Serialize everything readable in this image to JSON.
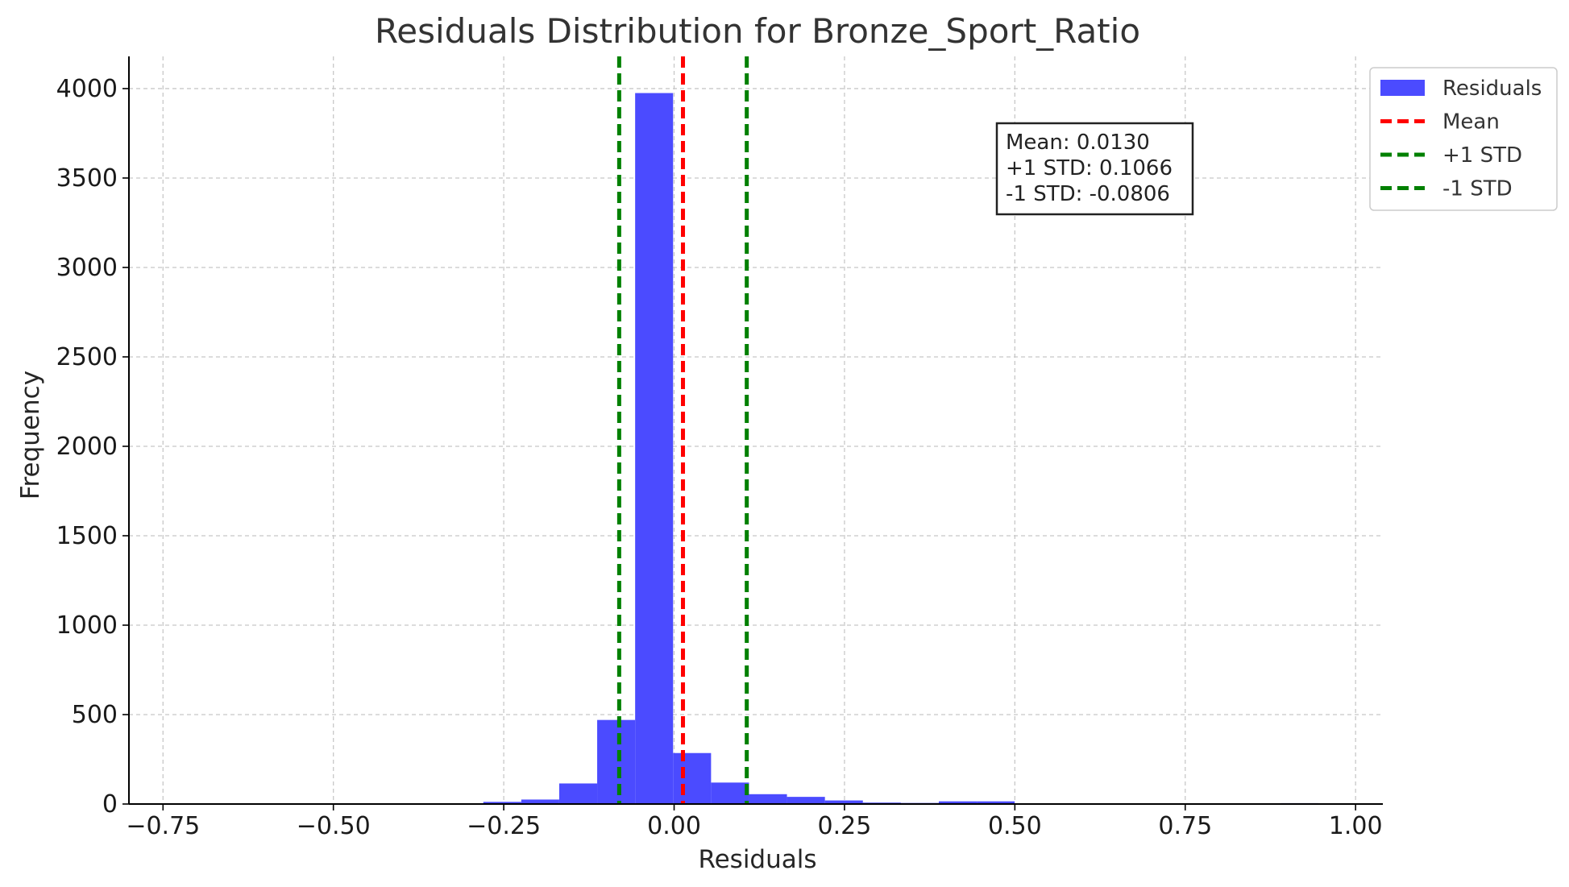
{
  "chart_data": {
    "type": "bar",
    "title": "Residuals Distribution for Bronze_Sport_Ratio",
    "xlabel": "Residuals",
    "ylabel": "Frequency",
    "xlim": [
      -0.8,
      1.04
    ],
    "ylim": [
      0,
      4180
    ],
    "xticks": [
      -0.75,
      -0.5,
      -0.25,
      0.0,
      0.25,
      0.5,
      0.75,
      1.0
    ],
    "xtick_labels": [
      "−0.75",
      "−0.50",
      "−0.25",
      "0.00",
      "0.25",
      "0.50",
      "0.75",
      "1.00"
    ],
    "yticks": [
      0,
      500,
      1000,
      1500,
      2000,
      2500,
      3000,
      3500,
      4000
    ],
    "ytick_labels": [
      "0",
      "500",
      "1000",
      "1500",
      "2000",
      "2500",
      "3000",
      "3500",
      "4000"
    ],
    "grid": true,
    "bar_color": "#4b4bff",
    "bin_width": 0.0557,
    "bins": [
      {
        "x0": -0.28,
        "value": 12
      },
      {
        "x0": -0.2243,
        "value": 25
      },
      {
        "x0": -0.1686,
        "value": 115
      },
      {
        "x0": -0.1129,
        "value": 470
      },
      {
        "x0": -0.0572,
        "value": 3975
      },
      {
        "x0": -0.0015,
        "value": 285
      },
      {
        "x0": 0.0542,
        "value": 120
      },
      {
        "x0": 0.1099,
        "value": 55
      },
      {
        "x0": 0.1656,
        "value": 40
      },
      {
        "x0": 0.2213,
        "value": 20
      },
      {
        "x0": 0.277,
        "value": 8
      },
      {
        "x0": 0.3327,
        "value": 6
      },
      {
        "x0": 0.3884,
        "value": 15
      },
      {
        "x0": 0.4441,
        "value": 15
      },
      {
        "x0": 0.89,
        "value": 5
      }
    ],
    "lines": [
      {
        "name": "Mean",
        "x": 0.013,
        "color": "#ff0000"
      },
      {
        "name": "+1 STD",
        "x": 0.1066,
        "color": "#008000"
      },
      {
        "name": "-1 STD",
        "x": -0.0806,
        "color": "#008000"
      }
    ],
    "legend": {
      "placement": "top-right",
      "entries": [
        {
          "label": "Residuals",
          "kind": "patch",
          "color": "#4b4bff"
        },
        {
          "label": "Mean",
          "kind": "dash",
          "color": "#ff0000"
        },
        {
          "label": "+1 STD",
          "kind": "dash",
          "color": "#008000"
        },
        {
          "label": "-1 STD",
          "kind": "dash",
          "color": "#008000"
        }
      ]
    },
    "stats_box": {
      "lines": [
        "Mean: 0.0130",
        "+1 STD: 0.1066",
        "-1 STD: -0.0806"
      ]
    }
  }
}
